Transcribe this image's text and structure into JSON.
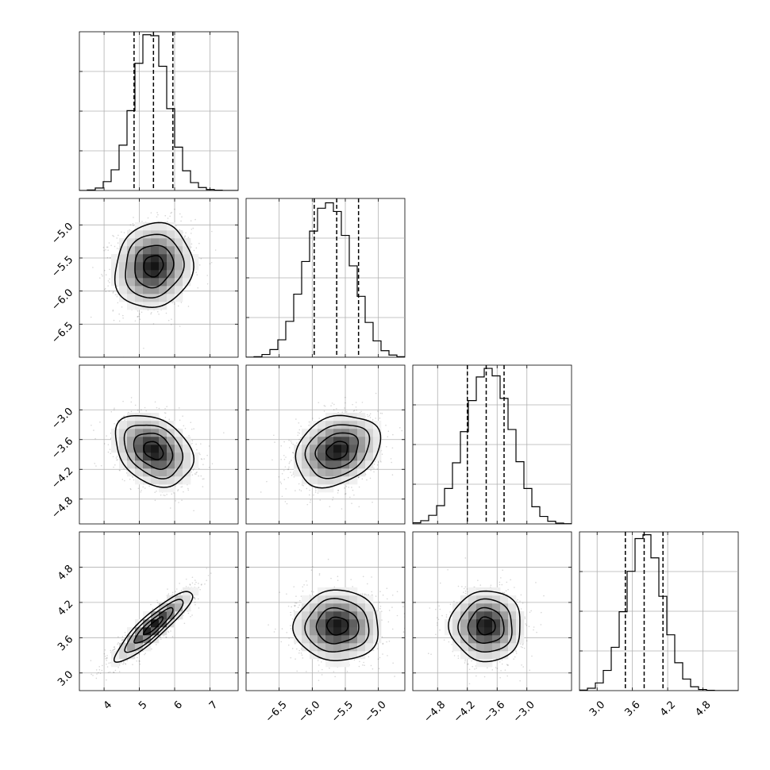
{
  "chart_data": {
    "type": "corner",
    "parameters": [
      {
        "range": [
          3.3,
          7.8
        ],
        "ticks": [
          4,
          5,
          6,
          7
        ],
        "tick_labels": [
          "4",
          "5",
          "6",
          "7"
        ],
        "quantiles": [
          4.85,
          5.4,
          5.95
        ],
        "hist_bin_edges": [
          3.3,
          3.525,
          3.75,
          3.975,
          4.2,
          4.425,
          4.65,
          4.875,
          5.1,
          5.325,
          5.55,
          5.775,
          6.0,
          6.225,
          6.45,
          6.675,
          6.9,
          7.125,
          7.35,
          7.575,
          7.8
        ],
        "hist_counts": [
          0,
          5,
          25,
          90,
          210,
          460,
          810,
          1290,
          1580,
          1570,
          1260,
          830,
          440,
          200,
          80,
          30,
          10,
          3,
          0,
          0
        ],
        "hist_ymax": 1610
      },
      {
        "range": [
          -7.0,
          -4.6
        ],
        "ticks": [
          -6.5,
          -6.0,
          -5.5,
          -5.0
        ],
        "tick_labels": [
          "−6.5",
          "−6.0",
          "−5.5",
          "−5.0"
        ],
        "quantiles": [
          -5.97,
          -5.63,
          -5.3
        ],
        "hist_bin_edges": [
          -7.0,
          -6.88,
          -6.76,
          -6.64,
          -6.52,
          -6.4,
          -6.28,
          -6.16,
          -6.04,
          -5.92,
          -5.8,
          -5.68,
          -5.56,
          -5.44,
          -5.32,
          -5.2,
          -5.08,
          -4.96,
          -4.84,
          -4.72,
          -4.6
        ],
        "hist_counts": [
          0,
          5,
          25,
          70,
          160,
          330,
          580,
          880,
          1160,
          1370,
          1420,
          1340,
          1120,
          840,
          560,
          320,
          150,
          60,
          20,
          5
        ],
        "hist_ymax": 1460
      },
      {
        "range": [
          -5.3,
          -2.1
        ],
        "ticks": [
          -4.8,
          -4.2,
          -3.6,
          -3.0
        ],
        "tick_labels": [
          "−4.8",
          "−4.2",
          "−3.6",
          "−3.0"
        ],
        "quantiles": [
          -4.2,
          -3.82,
          -3.46
        ],
        "hist_bin_edges": [
          -5.3,
          -5.14,
          -4.98,
          -4.82,
          -4.66,
          -4.5,
          -4.34,
          -4.18,
          -4.02,
          -3.86,
          -3.7,
          -3.54,
          -3.38,
          -3.22,
          -3.06,
          -2.9,
          -2.74,
          -2.58,
          -2.42,
          -2.26,
          -2.1
        ],
        "hist_counts": [
          10,
          30,
          80,
          170,
          330,
          570,
          860,
          1150,
          1370,
          1450,
          1380,
          1170,
          880,
          580,
          330,
          160,
          70,
          25,
          8,
          2
        ],
        "hist_ymax": 1480
      },
      {
        "range": [
          2.7,
          5.4
        ],
        "ticks": [
          3.0,
          3.6,
          4.2,
          4.8
        ],
        "tick_labels": [
          "3.0",
          "3.6",
          "4.2",
          "4.8"
        ],
        "quantiles": [
          3.48,
          3.8,
          4.12
        ],
        "hist_bin_edges": [
          2.7,
          2.835,
          2.97,
          3.105,
          3.24,
          3.375,
          3.51,
          3.645,
          3.78,
          3.915,
          4.05,
          4.185,
          4.32,
          4.455,
          4.59,
          4.725,
          4.86,
          4.995,
          5.13,
          5.265,
          5.4
        ],
        "hist_counts": [
          5,
          25,
          80,
          210,
          450,
          820,
          1240,
          1580,
          1620,
          1380,
          980,
          580,
          290,
          120,
          40,
          12,
          3,
          0,
          0,
          0
        ],
        "hist_ymax": 1650
      }
    ],
    "pairs": [
      {
        "x": 0,
        "y": 1,
        "mean": [
          5.4,
          -5.62
        ],
        "sd": [
          0.55,
          0.32
        ],
        "corr": 0.1
      },
      {
        "x": 0,
        "y": 2,
        "mean": [
          5.4,
          -3.82
        ],
        "sd": [
          0.55,
          0.36
        ],
        "corr": -0.3
      },
      {
        "x": 1,
        "y": 2,
        "mean": [
          -5.62,
          -3.82
        ],
        "sd": [
          0.32,
          0.36
        ],
        "corr": 0.25
      },
      {
        "x": 0,
        "y": 3,
        "mean": [
          5.4,
          3.8
        ],
        "sd": [
          0.55,
          0.3
        ],
        "corr": 0.9
      },
      {
        "x": 1,
        "y": 3,
        "mean": [
          -5.62,
          3.8
        ],
        "sd": [
          0.32,
          0.3
        ],
        "corr": 0.0
      },
      {
        "x": 2,
        "y": 3,
        "mean": [
          -3.82,
          3.8
        ],
        "sd": [
          0.36,
          0.3
        ],
        "corr": 0.0
      }
    ],
    "contour_levels_sigma": [
      0.5,
      1.0,
      1.5,
      2.0
    ],
    "grid": true,
    "colors": {
      "points": "#000000",
      "density": "#000000",
      "lines": "#000000",
      "grid": "#b0b0b0"
    }
  }
}
